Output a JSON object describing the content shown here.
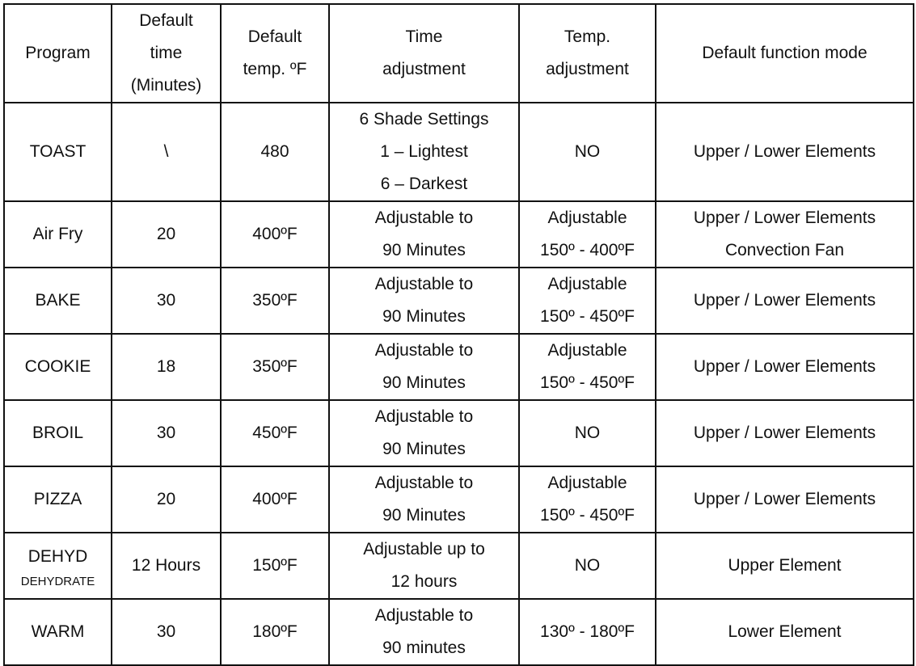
{
  "table": {
    "headers": [
      [
        "Program"
      ],
      [
        "Default",
        "time",
        "(Minutes)"
      ],
      [
        "Default",
        "temp. ºF"
      ],
      [
        "Time",
        "adjustment"
      ],
      [
        "Temp.",
        "adjustment"
      ],
      [
        "Default function mode"
      ]
    ],
    "rows": [
      {
        "program": "TOAST",
        "program_sub": "",
        "time": "\\",
        "temp": "480",
        "time_adj": [
          "6 Shade Settings",
          "1 – Lightest",
          "6 – Darkest"
        ],
        "temp_adj": [
          "NO"
        ],
        "mode": [
          "Upper / Lower Elements"
        ]
      },
      {
        "program": "Air Fry",
        "program_sub": "",
        "time": "20",
        "temp": "400ºF",
        "time_adj": [
          "Adjustable to",
          "90 Minutes"
        ],
        "temp_adj": [
          "Adjustable",
          "150º - 400ºF"
        ],
        "mode": [
          "Upper / Lower Elements",
          "Convection Fan"
        ]
      },
      {
        "program": "BAKE",
        "program_sub": "",
        "time": "30",
        "temp": "350ºF",
        "time_adj": [
          "Adjustable to",
          "90 Minutes"
        ],
        "temp_adj": [
          "Adjustable",
          "150º - 450ºF"
        ],
        "mode": [
          "Upper / Lower Elements"
        ]
      },
      {
        "program": "COOKIE",
        "program_sub": "",
        "time": "18",
        "temp": "350ºF",
        "time_adj": [
          "Adjustable to",
          "90 Minutes"
        ],
        "temp_adj": [
          "Adjustable",
          "150º - 450ºF"
        ],
        "mode": [
          "Upper / Lower Elements"
        ]
      },
      {
        "program": "BROIL",
        "program_sub": "",
        "time": "30",
        "temp": "450ºF",
        "time_adj": [
          "Adjustable to",
          "90 Minutes"
        ],
        "temp_adj": [
          "NO"
        ],
        "mode": [
          "Upper / Lower Elements"
        ]
      },
      {
        "program": "PIZZA",
        "program_sub": "",
        "time": "20",
        "temp": "400ºF",
        "time_adj": [
          "Adjustable to",
          "90 Minutes"
        ],
        "temp_adj": [
          "Adjustable",
          "150º - 450ºF"
        ],
        "mode": [
          "Upper / Lower Elements"
        ]
      },
      {
        "program": "DEHYD",
        "program_sub": "DEHYDRATE",
        "time": "12 Hours",
        "temp": "150ºF",
        "time_adj": [
          "Adjustable up to",
          "12 hours"
        ],
        "temp_adj": [
          "NO"
        ],
        "mode": [
          "Upper Element"
        ]
      },
      {
        "program": "WARM",
        "program_sub": "",
        "time": "30",
        "temp": "180ºF",
        "time_adj": [
          "Adjustable to",
          "90 minutes"
        ],
        "temp_adj": [
          "130º - 180ºF"
        ],
        "mode": [
          "Lower Element"
        ]
      }
    ]
  }
}
